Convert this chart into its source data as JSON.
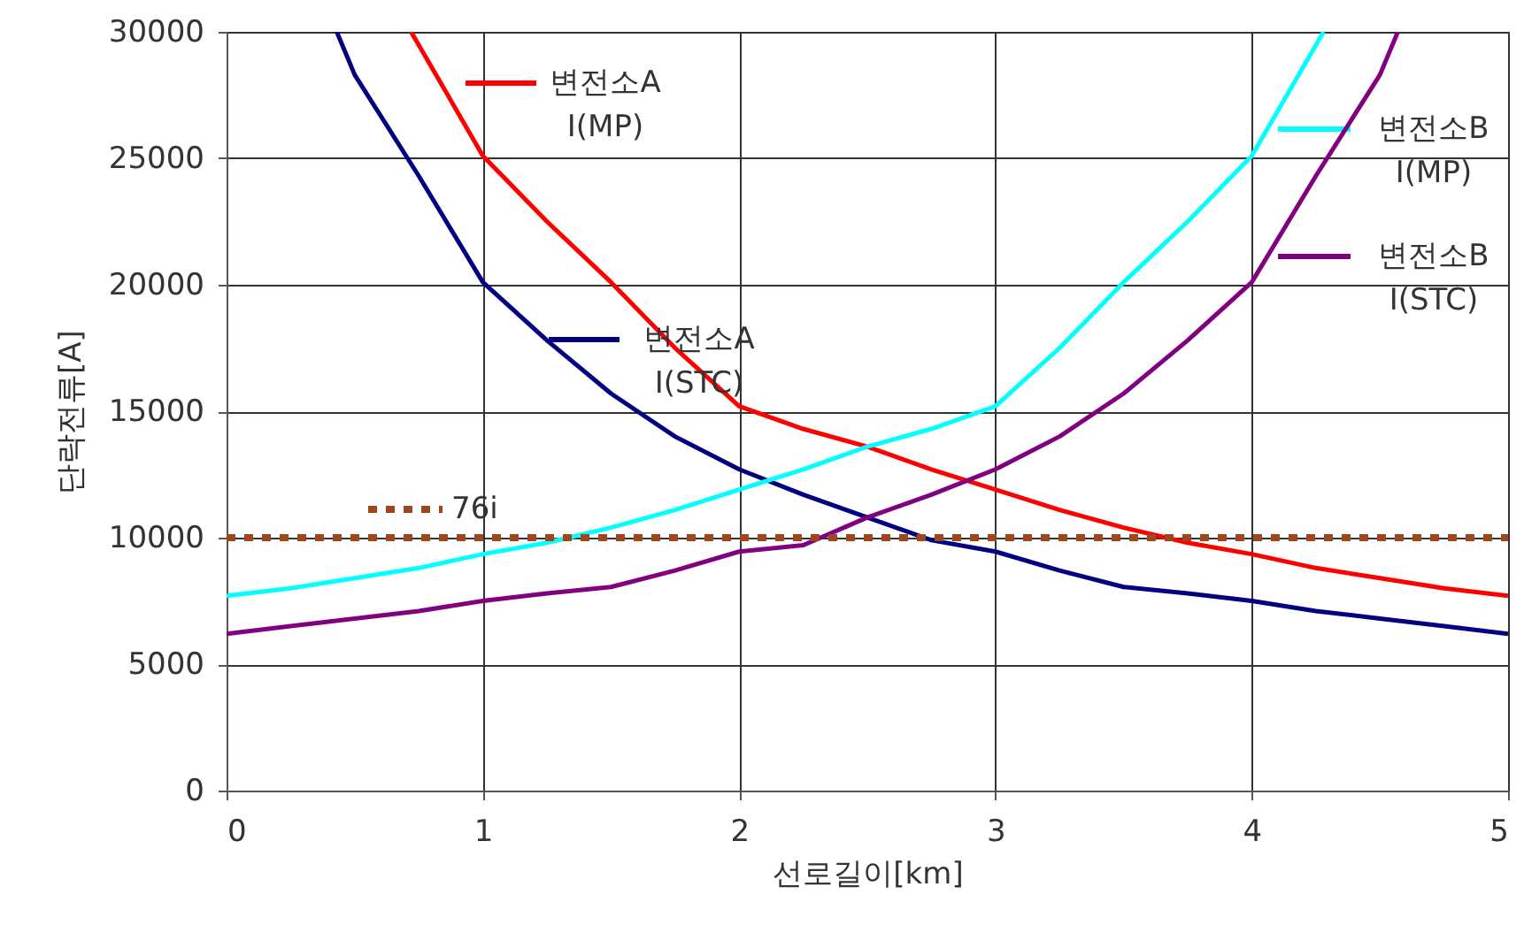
{
  "chart_data": {
    "type": "line",
    "xlabel": "선로길이[km]",
    "ylabel": "단락전류[A]",
    "xlim": [
      0,
      5
    ],
    "ylim": [
      0,
      30000
    ],
    "xticks": [
      0,
      1,
      2,
      3,
      4,
      5
    ],
    "yticks": [
      0,
      5000,
      10000,
      15000,
      20000,
      25000,
      30000
    ],
    "grid": true,
    "line_style": "solid",
    "legend": "top",
    "series": [
      {
        "name": "변전소A I(MP)",
        "color": "#ff0000",
        "x": [
          0.72,
          1,
          1.25,
          1.5,
          1.75,
          2,
          2.25,
          2.5,
          2.75,
          3,
          3.25,
          3.5,
          3.75,
          4,
          4.25,
          4.5,
          4.75,
          5
        ],
        "values": [
          30000,
          25100,
          22500,
          20100,
          17500,
          15200,
          14300,
          13600,
          12700,
          11900,
          11100,
          10400,
          9800,
          9350,
          8800,
          8400,
          8000,
          7700
        ]
      },
      {
        "name": "변전소A I(STC)",
        "color": "#000080",
        "x": [
          0.43,
          0.5,
          0.75,
          1,
          1.25,
          1.5,
          1.75,
          2,
          2.25,
          2.5,
          2.75,
          3,
          3.25,
          3.5,
          3.75,
          4,
          4.25,
          4.5,
          4.75,
          5
        ],
        "values": [
          30000,
          28300,
          24300,
          20100,
          17800,
          15700,
          14000,
          12700,
          11700,
          10800,
          9900,
          9450,
          8700,
          8050,
          7800,
          7500,
          7100,
          6800,
          6500,
          6200
        ]
      },
      {
        "name": "변전소B I(MP)",
        "color": "#00ffff",
        "x": [
          0,
          0.25,
          0.5,
          0.75,
          1,
          1.25,
          1.5,
          1.75,
          2,
          2.25,
          2.5,
          2.75,
          3,
          3.25,
          3.5,
          3.75,
          4,
          4.28
        ],
        "values": [
          7700,
          8000,
          8400,
          8800,
          9350,
          9800,
          10400,
          11100,
          11900,
          12700,
          13600,
          14300,
          15200,
          17500,
          20100,
          22500,
          25100,
          30000
        ]
      },
      {
        "name": "변전소B I(STC)",
        "color": "#800080",
        "x": [
          0,
          0.25,
          0.5,
          0.75,
          1,
          1.25,
          1.5,
          1.75,
          2,
          2.25,
          2.5,
          2.75,
          3,
          3.25,
          3.5,
          3.75,
          4,
          4.25,
          4.5,
          4.57
        ],
        "values": [
          6200,
          6500,
          6800,
          7100,
          7500,
          7800,
          8050,
          8700,
          9450,
          9700,
          10800,
          11700,
          12700,
          14000,
          15700,
          17800,
          20100,
          24300,
          28300,
          30000
        ]
      },
      {
        "name": "76i",
        "color": "#a0461e",
        "line_style": "dotted",
        "x": [
          0,
          5
        ],
        "values": [
          10000,
          10000
        ]
      }
    ]
  }
}
